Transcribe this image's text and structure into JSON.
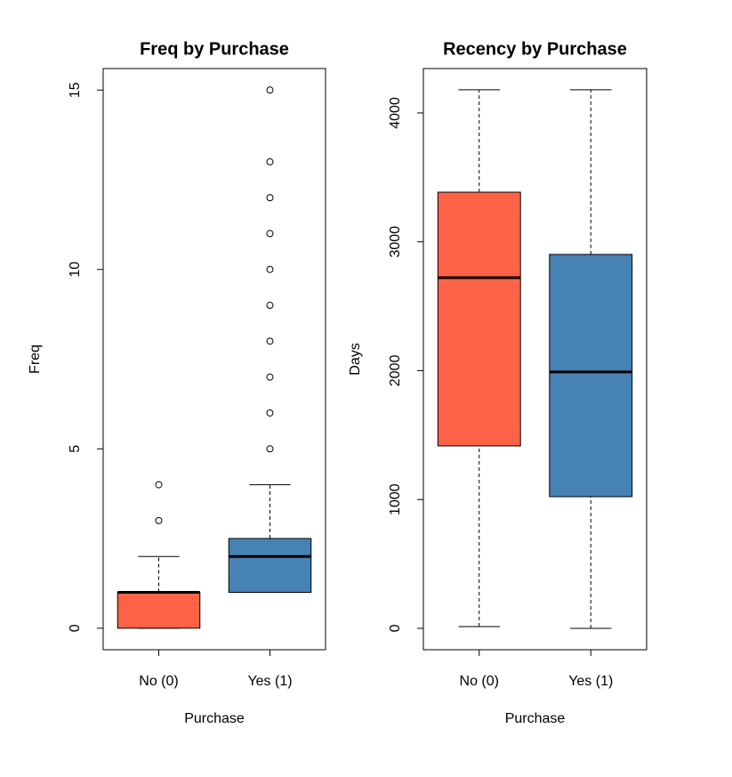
{
  "chart_data": [
    {
      "type": "box",
      "title": "Freq by Purchase",
      "x_label": "Purchase",
      "y_label": "Freq",
      "categories": [
        "No (0)",
        "Yes (1)"
      ],
      "colors": [
        "#ff6347",
        "#4682b4"
      ],
      "boxes": [
        {
          "min": 0,
          "q1": 0,
          "median": 1,
          "q3": 1,
          "max": 2,
          "outliers": [
            3,
            4
          ]
        },
        {
          "min": 1,
          "q1": 1,
          "median": 2,
          "q3": 2.5,
          "max": 4,
          "outliers": [
            5,
            6,
            7,
            8,
            9,
            10,
            11,
            12,
            13,
            15
          ]
        }
      ],
      "ylim": [
        -0.6,
        15.6
      ],
      "yticks": [
        0,
        5,
        10,
        15
      ]
    },
    {
      "type": "box",
      "title": "Recency by Purchase",
      "x_label": "Purchase",
      "y_label": "Days",
      "categories": [
        "No (0)",
        "Yes (1)"
      ],
      "colors": [
        "#ff6347",
        "#4682b4"
      ],
      "boxes": [
        {
          "min": 14,
          "q1": 1416,
          "median": 2722,
          "q3": 3385,
          "max": 4180,
          "outliers": []
        },
        {
          "min": 0,
          "q1": 1022,
          "median": 1990,
          "q3": 2902,
          "max": 4180,
          "outliers": []
        }
      ],
      "ylim": [
        -166,
        4345
      ],
      "yticks": [
        0,
        1000,
        2000,
        3000,
        4000
      ]
    }
  ]
}
